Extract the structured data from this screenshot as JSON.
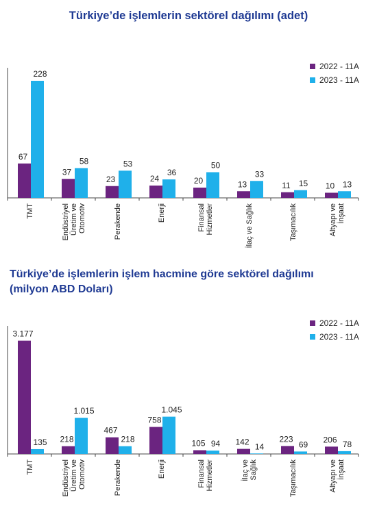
{
  "chart_data": [
    {
      "type": "bar",
      "title": "Türkiye’de işlemlerin sektörel dağılımı (adet)",
      "categories": [
        [
          "TMT"
        ],
        [
          "Endüstriyel",
          "Üretim ve",
          "Otomotiv"
        ],
        [
          "Perakende"
        ],
        [
          "Enerji"
        ],
        [
          "Finansal",
          "Hizmetler"
        ],
        [
          "İlaç ve Sağlık"
        ],
        [
          "Taşımacılık"
        ],
        [
          "Altyapı ve",
          "İnşaat"
        ]
      ],
      "series": [
        {
          "name": "2022 - 11A",
          "color": "#6b2480",
          "values": [
            67,
            37,
            23,
            24,
            20,
            13,
            11,
            10
          ],
          "labels": [
            "67",
            "37",
            "23",
            "24",
            "20",
            "13",
            "11",
            "10"
          ]
        },
        {
          "name": "2023 - 11A",
          "color": "#1fb0ea",
          "values": [
            228,
            58,
            53,
            36,
            50,
            33,
            15,
            13
          ],
          "labels": [
            "228",
            "58",
            "53",
            "36",
            "50",
            "33",
            "15",
            "13"
          ]
        }
      ],
      "ylim": [
        0,
        240
      ],
      "grid": false,
      "legend": "top-right"
    },
    {
      "type": "bar",
      "title": [
        "Türkiye’de işlemlerin işlem hacmine göre sektörel dağılımı",
        "(milyon ABD Doları)"
      ],
      "categories": [
        [
          "TMT"
        ],
        [
          "Endüstriyel",
          "Üretim ve",
          "Otomotiv"
        ],
        [
          "Perakende"
        ],
        [
          "Enerji"
        ],
        [
          "Finansal",
          "Hizmetler"
        ],
        [
          "İlaç ve",
          "Sağlık"
        ],
        [
          "Taşımacılık"
        ],
        [
          "Altyapı ve",
          "İnşaat"
        ]
      ],
      "series": [
        {
          "name": "2022 - 11A",
          "color": "#6b2480",
          "values": [
            3177,
            218,
            467,
            758,
            105,
            142,
            223,
            206
          ],
          "labels": [
            "3.177",
            "218",
            "467",
            "758",
            "105",
            "142",
            "223",
            "206"
          ]
        },
        {
          "name": "2023 - 11A",
          "color": "#1fb0ea",
          "values": [
            135,
            1015,
            218,
            1045,
            94,
            14,
            69,
            78
          ],
          "labels": [
            "135",
            "1.015",
            "218",
            "1.045",
            "94",
            "14",
            "69",
            "78"
          ]
        }
      ],
      "ylim": [
        0,
        3400
      ],
      "grid": false,
      "legend": "top-right"
    }
  ]
}
